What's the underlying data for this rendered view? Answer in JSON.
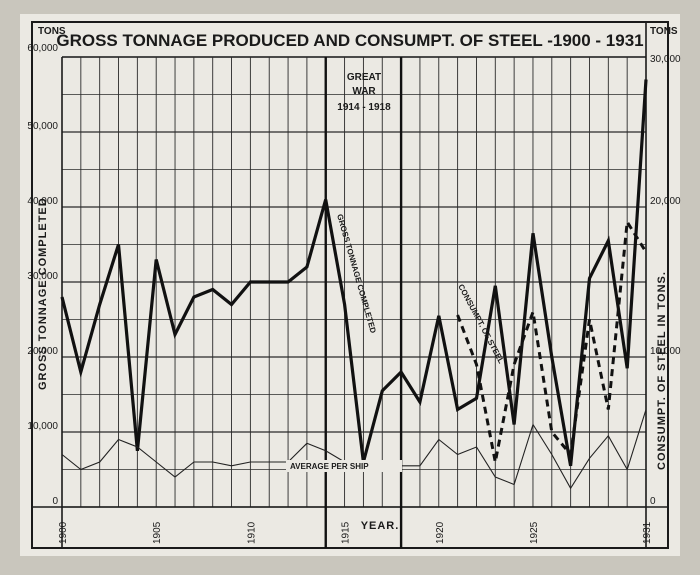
{
  "chart_data": {
    "type": "line",
    "title": "GROSS TONNAGE PRODUCED AND CONSUMPT. OF STEEL -1900 - 1931",
    "left_unit": "TONS",
    "right_unit": "TONS",
    "xlabel": "YEAR.",
    "ylabel_left": "GROSS TONNAGE COMPLETED",
    "ylabel_right": "CONSUMPT. OF STEEL IN TONS.",
    "xlim": [
      1900,
      1931
    ],
    "ylim_left": [
      0,
      60000
    ],
    "ylim_right": [
      0,
      30000
    ],
    "x_ticks": [
      1900,
      1905,
      1910,
      1915,
      1920,
      1925,
      1931
    ],
    "y_ticks_left": [
      {
        "value": 0,
        "label": "0"
      },
      {
        "value": 10000,
        "label": "10,000"
      },
      {
        "value": 20000,
        "label": "20,000"
      },
      {
        "value": 30000,
        "label": "30,000"
      },
      {
        "value": 40000,
        "label": "40,000"
      },
      {
        "value": 50000,
        "label": "50,000"
      },
      {
        "value": 60000,
        "label": "60,000"
      }
    ],
    "y_ticks_right": [
      {
        "value": 0,
        "label": "0"
      },
      {
        "value": 10000,
        "label": "10,000"
      },
      {
        "value": 20000,
        "label": "20,000"
      },
      {
        "value": 30000,
        "label": "30,000"
      }
    ],
    "grid": true,
    "series": [
      {
        "name": "GROSS TONNAGE COMPLETED",
        "axis": "left",
        "x": [
          1900,
          1901,
          1902,
          1903,
          1904,
          1905,
          1906,
          1907,
          1908,
          1909,
          1910,
          1911,
          1912,
          1913,
          1914,
          1915,
          1916,
          1917,
          1918,
          1919,
          1920,
          1921,
          1922,
          1923,
          1924,
          1925,
          1926,
          1927,
          1928,
          1929,
          1930,
          1931
        ],
        "values": [
          28000,
          18000,
          27000,
          35000,
          7500,
          33000,
          23000,
          28000,
          29000,
          27000,
          30000,
          30000,
          30000,
          32000,
          41000,
          27000,
          6000,
          15500,
          18000,
          14000,
          25500,
          13000,
          14500,
          29500,
          11000,
          36500,
          20000,
          5500,
          30500,
          35500,
          18500,
          57000
        ]
      },
      {
        "name": "CONSUMPT. OF STEEL",
        "axis": "right",
        "x": [
          1921,
          1922,
          1923,
          1924,
          1925,
          1926,
          1927,
          1928,
          1929,
          1930,
          1931
        ],
        "values": [
          12800,
          9500,
          3000,
          9500,
          13000,
          5000,
          3500,
          12500,
          6500,
          19000,
          17000
        ]
      },
      {
        "name": "AVERAGE PER SHIP",
        "axis": "left",
        "x": [
          1900,
          1901,
          1902,
          1903,
          1904,
          1905,
          1906,
          1907,
          1908,
          1909,
          1910,
          1911,
          1912,
          1913,
          1914,
          1915,
          1916,
          1917,
          1918,
          1919,
          1920,
          1921,
          1922,
          1923,
          1924,
          1925,
          1926,
          1927,
          1928,
          1929,
          1930,
          1931
        ],
        "values": [
          7000,
          5000,
          6000,
          9000,
          8000,
          6000,
          4000,
          6000,
          6000,
          5500,
          6000,
          6000,
          6000,
          8500,
          7500,
          6000,
          5000,
          5500,
          5500,
          5500,
          9000,
          7000,
          8000,
          4000,
          3000,
          11000,
          7000,
          2500,
          6500,
          9500,
          5000,
          13000
        ]
      }
    ],
    "annotations": {
      "war_line1": "GREAT",
      "war_line2": "WAR",
      "war_line3": "1914 - 1918",
      "war_start": 1914,
      "war_end": 1918
    }
  }
}
